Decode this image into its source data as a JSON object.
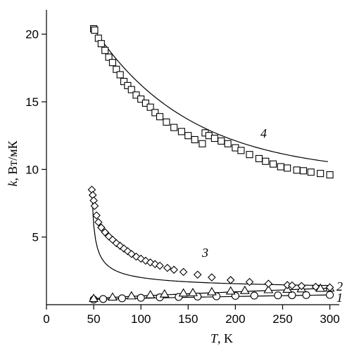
{
  "chart_data": {
    "type": "scatter",
    "title": "",
    "xlabel_italic": "T",
    "xlabel_unit": ", K",
    "ylabel_italic": "k",
    "ylabel_unit": ", Вт/мК",
    "xlim": [
      0,
      310
    ],
    "ylim": [
      0,
      21.8
    ],
    "x_ticks": [
      0,
      50,
      100,
      150,
      200,
      250,
      300
    ],
    "y_ticks": [
      5,
      10,
      15,
      20
    ],
    "grid": false,
    "series": [
      {
        "name": "1",
        "marker": "circle",
        "x": [
          50,
          60,
          80,
          100,
          120,
          140,
          160,
          180,
          200,
          220,
          245,
          260,
          275,
          300
        ],
        "y": [
          0.38,
          0.42,
          0.47,
          0.51,
          0.54,
          0.57,
          0.6,
          0.62,
          0.65,
          0.67,
          0.69,
          0.7,
          0.71,
          0.72
        ]
      },
      {
        "name": "2",
        "marker": "triangle",
        "x": [
          50,
          70,
          90,
          110,
          125,
          145,
          155,
          175,
          195,
          210,
          235,
          255,
          270,
          290,
          300
        ],
        "y": [
          0.45,
          0.55,
          0.64,
          0.72,
          0.78,
          0.85,
          0.88,
          0.94,
          1.0,
          1.04,
          1.1,
          1.13,
          1.16,
          1.2,
          1.22
        ]
      },
      {
        "name": "3",
        "marker": "diamond",
        "x": [
          48,
          49,
          50,
          51,
          53,
          55,
          58,
          62,
          66,
          70,
          74,
          78,
          82,
          86,
          90,
          95,
          100,
          105,
          110,
          115,
          120,
          128,
          135,
          145,
          160,
          175,
          195,
          215,
          235,
          255,
          260,
          270,
          285,
          300
        ],
        "y": [
          8.5,
          8.1,
          7.7,
          7.3,
          6.6,
          6.1,
          5.7,
          5.35,
          5.05,
          4.8,
          4.55,
          4.35,
          4.15,
          3.95,
          3.75,
          3.55,
          3.4,
          3.25,
          3.12,
          3.0,
          2.88,
          2.72,
          2.58,
          2.42,
          2.22,
          2.02,
          1.82,
          1.68,
          1.55,
          1.45,
          1.42,
          1.38,
          1.32,
          1.28
        ]
      },
      {
        "name": "4",
        "marker": "square",
        "x": [
          50,
          51,
          55,
          58,
          62,
          66,
          70,
          74,
          78,
          82,
          86,
          90,
          95,
          100,
          105,
          110,
          115,
          120,
          127,
          135,
          143,
          150,
          157,
          165,
          168,
          172,
          178,
          185,
          192,
          200,
          206,
          215,
          225,
          232,
          240,
          248,
          255,
          265,
          272,
          280,
          290,
          300
        ],
        "y": [
          20.4,
          20.3,
          19.7,
          19.3,
          18.8,
          18.3,
          17.9,
          17.4,
          17.0,
          16.5,
          16.2,
          15.9,
          15.5,
          15.2,
          14.9,
          14.6,
          14.2,
          13.9,
          13.5,
          13.1,
          12.8,
          12.5,
          12.2,
          11.9,
          12.7,
          12.5,
          12.3,
          12.1,
          11.9,
          11.6,
          11.4,
          11.1,
          10.8,
          10.6,
          10.4,
          10.2,
          10.1,
          9.95,
          9.9,
          9.8,
          9.7,
          9.6
        ]
      }
    ]
  }
}
